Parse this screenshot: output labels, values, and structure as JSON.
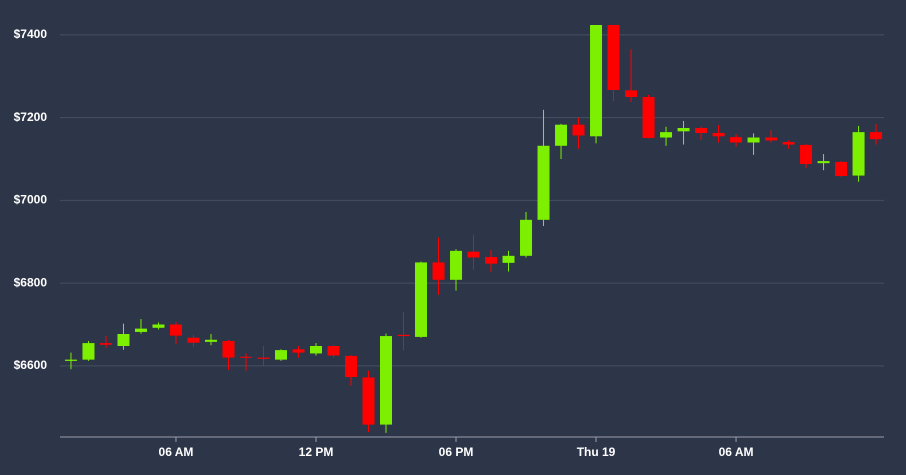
{
  "chart_data": {
    "type": "candlestick",
    "x": [
      -4.5,
      -3.75,
      -3,
      -2.25,
      -1.5,
      -0.75,
      0,
      0.75,
      1.5,
      2.25,
      3,
      3.75,
      4.5,
      5.25,
      6,
      6.75,
      7.5,
      8.25,
      9,
      9.75,
      10.5,
      11.25,
      12,
      12.75,
      13.5,
      14.25,
      15,
      15.75,
      16.5,
      17.25,
      18,
      18.75,
      19.5,
      20.25,
      21,
      21.75,
      22.5,
      23.25,
      24,
      24.75,
      25.5,
      26.25,
      27,
      27.75,
      28.5,
      29.25,
      30
    ],
    "open": [
      6612,
      6615,
      6655,
      6648,
      6682,
      6692,
      6700,
      6668,
      6658,
      6660,
      6622,
      6620,
      6615,
      6640,
      6630,
      6648,
      6624,
      6572,
      6458,
      6675,
      6670,
      6850,
      6808,
      6876,
      6863,
      6849,
      6866,
      6953,
      7132,
      7183,
      7155,
      7424,
      7266,
      7250,
      7152,
      7167,
      7175,
      7163,
      7153,
      7140,
      7152,
      7141,
      7134,
      7090,
      7093,
      7060,
      7165
    ],
    "high": [
      6632,
      6660,
      6672,
      6702,
      6713,
      6705,
      6706,
      6675,
      6677,
      6662,
      6630,
      6648,
      6640,
      6648,
      6655,
      6650,
      6626,
      6588,
      6678,
      6730,
      6852,
      6910,
      6882,
      6917,
      6880,
      6878,
      6972,
      7219,
      7185,
      7200,
      7424,
      7424,
      7365,
      7255,
      7178,
      7192,
      7178,
      7182,
      7160,
      7162,
      7170,
      7145,
      7136,
      7112,
      7095,
      7180,
      7185
    ],
    "low": [
      6592,
      6612,
      6643,
      6639,
      6678,
      6688,
      6653,
      6646,
      6650,
      6590,
      6588,
      6600,
      6612,
      6620,
      6625,
      6620,
      6552,
      6440,
      6438,
      6638,
      6668,
      6772,
      6782,
      6832,
      6827,
      6828,
      6862,
      6938,
      7100,
      7125,
      7138,
      7240,
      7238,
      7150,
      7132,
      7135,
      7146,
      7140,
      7130,
      7110,
      7140,
      7125,
      7078,
      7073,
      7057,
      7045,
      7135
    ],
    "close": [
      6615,
      6655,
      6651,
      6677,
      6690,
      6700,
      6673,
      6656,
      6663,
      6620,
      6620,
      6617,
      6638,
      6632,
      6648,
      6625,
      6573,
      6458,
      6672,
      6672,
      6850,
      6808,
      6878,
      6862,
      6847,
      6866,
      6953,
      7132,
      7183,
      7157,
      7424,
      7267,
      7250,
      7151,
      7165,
      7175,
      7163,
      7155,
      7140,
      7152,
      7145,
      7135,
      7088,
      7095,
      7059,
      7165,
      7148
    ],
    "up_color": "#7cf000",
    "down_color": "#ff0000",
    "xlim": [
      -4.97,
      30.34
    ],
    "xticks": [
      {
        "value": 0,
        "label": "06 AM"
      },
      {
        "value": 6,
        "label": "12 PM"
      },
      {
        "value": 12,
        "label": "06 PM"
      },
      {
        "value": 18,
        "label": "Thu 19"
      },
      {
        "value": 24,
        "label": "06 AM"
      }
    ],
    "ylim": [
      6428,
      7424
    ],
    "yticks": [
      {
        "value": 6600,
        "label": "$6600"
      },
      {
        "value": 6800,
        "label": "$6800"
      },
      {
        "value": 7000,
        "label": "$7000"
      },
      {
        "value": 7200,
        "label": "$7200"
      },
      {
        "value": 7400,
        "label": "$7400"
      }
    ],
    "grid": true
  }
}
